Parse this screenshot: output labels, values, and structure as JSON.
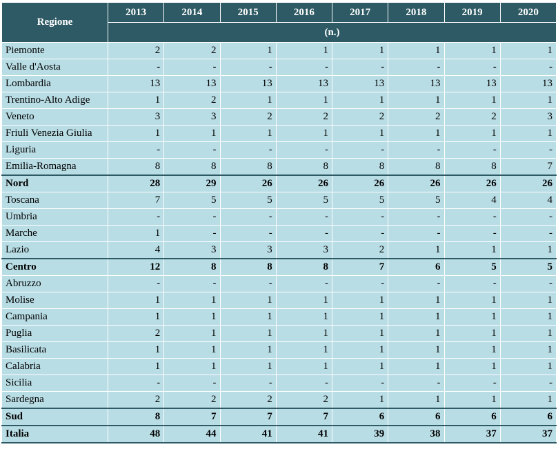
{
  "table": {
    "header_label": "Regione",
    "years": [
      "2013",
      "2014",
      "2015",
      "2016",
      "2017",
      "2018",
      "2019",
      "2020"
    ],
    "unit": "(n.)",
    "rows": [
      {
        "name": "Piemonte",
        "values": [
          "2",
          "2",
          "1",
          "1",
          "1",
          "1",
          "1",
          "1"
        ],
        "bold": false
      },
      {
        "name": "Valle d'Aosta",
        "values": [
          "-",
          "-",
          "-",
          "-",
          "-",
          "-",
          "-",
          "-"
        ],
        "bold": false
      },
      {
        "name": "Lombardia",
        "values": [
          "13",
          "13",
          "13",
          "13",
          "13",
          "13",
          "13",
          "13"
        ],
        "bold": false
      },
      {
        "name": "Trentino-Alto Adige",
        "values": [
          "1",
          "2",
          "1",
          "1",
          "1",
          "1",
          "1",
          "1"
        ],
        "bold": false
      },
      {
        "name": "Veneto",
        "values": [
          "3",
          "3",
          "2",
          "2",
          "2",
          "2",
          "2",
          "3"
        ],
        "bold": false
      },
      {
        "name": "Friuli Venezia Giulia",
        "values": [
          "1",
          "1",
          "1",
          "1",
          "1",
          "1",
          "1",
          "1"
        ],
        "bold": false
      },
      {
        "name": "Liguria",
        "values": [
          "-",
          "-",
          "-",
          "-",
          "-",
          "-",
          "-",
          "-"
        ],
        "bold": false
      },
      {
        "name": "Emilia-Romagna",
        "values": [
          "8",
          "8",
          "8",
          "8",
          "8",
          "8",
          "8",
          "7"
        ],
        "bold": false
      },
      {
        "name": "Nord",
        "values": [
          "28",
          "29",
          "26",
          "26",
          "26",
          "26",
          "26",
          "26"
        ],
        "bold": true
      },
      {
        "name": "Toscana",
        "values": [
          "7",
          "5",
          "5",
          "5",
          "5",
          "5",
          "4",
          "4"
        ],
        "bold": false
      },
      {
        "name": "Umbria",
        "values": [
          "-",
          "-",
          "-",
          "-",
          "-",
          "-",
          "-",
          "-"
        ],
        "bold": false
      },
      {
        "name": "Marche",
        "values": [
          "1",
          "-",
          "-",
          "-",
          "-",
          "-",
          "-",
          "-"
        ],
        "bold": false
      },
      {
        "name": "Lazio",
        "values": [
          "4",
          "3",
          "3",
          "3",
          "2",
          "1",
          "1",
          "1"
        ],
        "bold": false
      },
      {
        "name": "Centro",
        "values": [
          "12",
          "8",
          "8",
          "8",
          "7",
          "6",
          "5",
          "5"
        ],
        "bold": true
      },
      {
        "name": "Abruzzo",
        "values": [
          "-",
          "-",
          "-",
          "-",
          "-",
          "-",
          "-",
          "-"
        ],
        "bold": false
      },
      {
        "name": "Molise",
        "values": [
          "1",
          "1",
          "1",
          "1",
          "1",
          "1",
          "1",
          "1"
        ],
        "bold": false
      },
      {
        "name": "Campania",
        "values": [
          "1",
          "1",
          "1",
          "1",
          "1",
          "1",
          "1",
          "1"
        ],
        "bold": false
      },
      {
        "name": "Puglia",
        "values": [
          "2",
          "1",
          "1",
          "1",
          "1",
          "1",
          "1",
          "1"
        ],
        "bold": false
      },
      {
        "name": "Basilicata",
        "values": [
          "1",
          "1",
          "1",
          "1",
          "1",
          "1",
          "1",
          "1"
        ],
        "bold": false
      },
      {
        "name": "Calabria",
        "values": [
          "1",
          "1",
          "1",
          "1",
          "1",
          "1",
          "1",
          "1"
        ],
        "bold": false
      },
      {
        "name": "Sicilia",
        "values": [
          "-",
          "-",
          "-",
          "-",
          "-",
          "-",
          "-",
          "-"
        ],
        "bold": false
      },
      {
        "name": "Sardegna",
        "values": [
          "2",
          "2",
          "2",
          "2",
          "1",
          "1",
          "1",
          "1"
        ],
        "bold": false
      },
      {
        "name": "Sud",
        "values": [
          "8",
          "7",
          "7",
          "7",
          "6",
          "6",
          "6",
          "6"
        ],
        "bold": true
      },
      {
        "name": "Italia",
        "values": [
          "48",
          "44",
          "41",
          "41",
          "39",
          "38",
          "37",
          "37"
        ],
        "bold": true
      }
    ]
  }
}
